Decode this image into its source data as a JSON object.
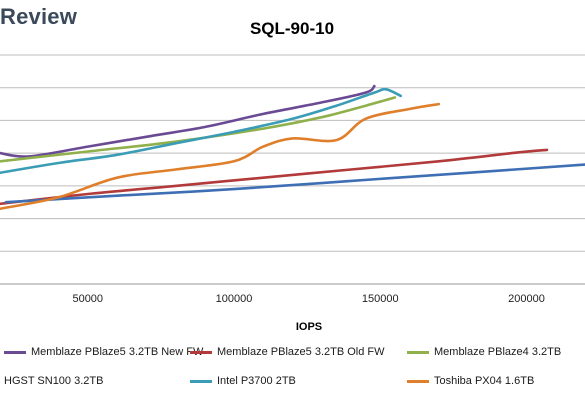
{
  "brand": "Review",
  "chart_data": {
    "type": "line",
    "title": "SQL-90-10",
    "xlabel": "IOPS",
    "ylabel": "",
    "xlim": [
      20000,
      220000
    ],
    "ylim": [
      0,
      7
    ],
    "xticks": [
      50000,
      100000,
      150000,
      200000
    ],
    "grid": true,
    "legend": "bottom",
    "series": [
      {
        "name": "Memblaze PBlaze5 3.2TB New FW",
        "color": "#6b4a94",
        "x": [
          20000,
          30000,
          50000,
          70000,
          90000,
          110000,
          130000,
          145000,
          148000
        ],
        "y": [
          4.0,
          3.9,
          4.2,
          4.5,
          4.8,
          5.2,
          5.55,
          5.85,
          6.05
        ]
      },
      {
        "name": "Memblaze PBlaze5 3.2TB Old FW",
        "color": "#b23a3a",
        "x": [
          20000,
          50000,
          80000,
          110000,
          140000,
          170000,
          195000,
          207000
        ],
        "y": [
          2.45,
          2.75,
          3.0,
          3.25,
          3.5,
          3.75,
          4.0,
          4.1
        ]
      },
      {
        "name": "Memblaze PBlaze4 3.2TB",
        "color": "#8fb04a",
        "x": [
          20000,
          50000,
          80000,
          110000,
          130000,
          145000,
          155000
        ],
        "y": [
          3.75,
          4.05,
          4.35,
          4.75,
          5.1,
          5.45,
          5.7
        ]
      },
      {
        "name": "HGST SN100 3.2TB",
        "color": "#3e6fb5",
        "x": [
          22000,
          60000,
          100000,
          140000,
          180000,
          220000
        ],
        "y": [
          2.5,
          2.7,
          2.9,
          3.15,
          3.4,
          3.65
        ]
      },
      {
        "name": "Intel P3700 2TB",
        "color": "#3a9cb5",
        "x": [
          20000,
          40000,
          60000,
          80000,
          100000,
          120000,
          135000,
          148000,
          152000,
          157000
        ],
        "y": [
          3.4,
          3.7,
          3.95,
          4.3,
          4.65,
          5.05,
          5.45,
          5.85,
          5.95,
          5.75
        ]
      },
      {
        "name": "Toshiba PX04 1.6TB",
        "color": "#e07f2b",
        "x": [
          20000,
          40000,
          60000,
          80000,
          100000,
          110000,
          120000,
          135000,
          145000,
          160000,
          170000
        ],
        "y": [
          2.3,
          2.65,
          3.25,
          3.5,
          3.75,
          4.2,
          4.45,
          4.4,
          5.05,
          5.35,
          5.5
        ]
      }
    ]
  }
}
